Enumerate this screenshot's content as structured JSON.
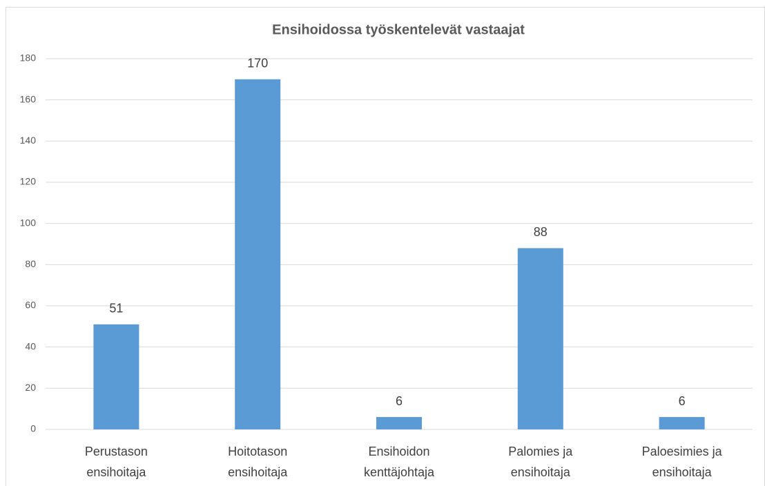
{
  "chart_data": {
    "type": "bar",
    "title": "Ensihoidossa työskentelevät vastaajat",
    "categories": [
      "Perustason ensihoitaja",
      "Hoitotason ensihoitaja",
      "Ensihoidon kenttäjohtaja",
      "Palomies ja ensihoitaja",
      "Paloesimies ja ensihoitaja"
    ],
    "values": [
      51,
      170,
      6,
      88,
      6
    ],
    "color": "#5b9bd5",
    "ylim": [
      0,
      180
    ],
    "yticks": [
      0,
      20,
      40,
      60,
      80,
      100,
      120,
      140,
      160,
      180
    ],
    "grid": true
  }
}
